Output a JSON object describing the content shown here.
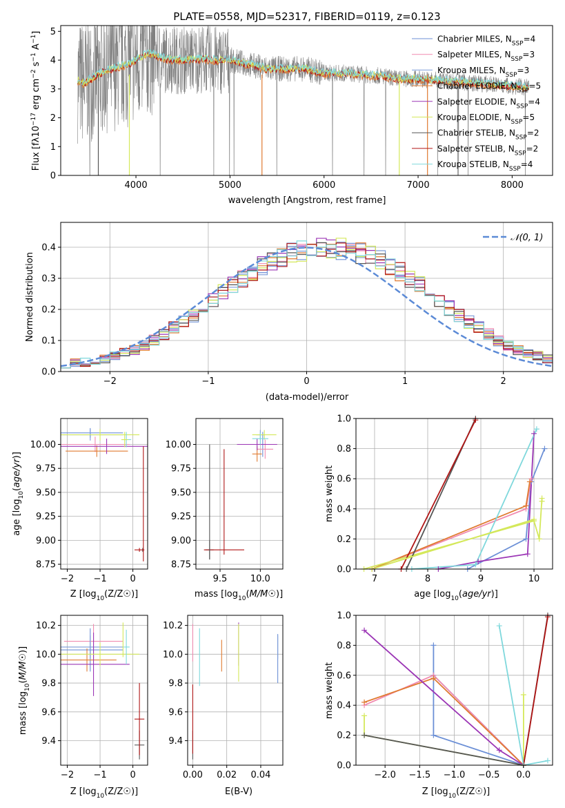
{
  "title": "PLATE=0558, MJD=52317, FIBERID=0119, z=0.123",
  "colors": {
    "chabrier_miles": "#6b8fd6",
    "salpeter_miles": "#f08ab0",
    "kroupa_miles": "#7b9bd8",
    "chabrier_elodie": "#e07a30",
    "salpeter_elodie": "#9b35b5",
    "kroupa_elodie": "#d4e85a",
    "chabrier_stelib": "#555555",
    "salpeter_stelib": "#b01515",
    "kroupa_stelib": "#7fd8dc",
    "spectrum_data": "#808080",
    "gaussian": "#5b8ad6"
  },
  "chart_data": [
    {
      "id": "spectrum",
      "type": "line",
      "title": "PLATE=0558, MJD=52317, FIBERID=0119, z=0.123",
      "xlabel": "wavelength [Angstrom, rest frame]",
      "ylabel": "Flux [f_λ 10^-17 erg cm^-2 s^-1 A^-1]",
      "xlim": [
        3200,
        8430
      ],
      "ylim": [
        0,
        5.2
      ],
      "xticks": [
        4000,
        5000,
        6000,
        7000,
        8000
      ],
      "yticks": [
        0,
        1,
        2,
        3,
        4,
        5
      ],
      "grid": false,
      "legend": "top-right",
      "legend_entries": [
        "Chabrier MILES, N_SSP=4",
        "Salpeter MILES, N_SSP=3",
        "Kroupa MILES, N_SSP=3",
        "Chabrier ELODIE, N_SSP=5",
        "Salpeter ELODIE, N_SSP=4",
        "Kroupa ELODIE, N_SSP=5",
        "Chabrier STELIB, N_SSP=2",
        "Salpeter STELIB, N_SSP=2",
        "Kroupa STELIB, N_SSP=4"
      ],
      "data_range": [
        3380,
        8180
      ],
      "model_curve": {
        "x": [
          3380,
          3450,
          3550,
          3650,
          3750,
          3850,
          3950,
          4050,
          4150,
          4300,
          4500,
          4700,
          4850,
          5000,
          5200,
          5400,
          5600,
          5800,
          6000,
          6200,
          6400,
          6600,
          6800,
          7000,
          7200,
          7400,
          7600,
          7800,
          8000,
          8180
        ],
        "y": [
          3.3,
          3.2,
          3.4,
          3.6,
          3.7,
          3.8,
          3.9,
          4.1,
          4.25,
          4.05,
          4.0,
          4.05,
          4.0,
          4.0,
          3.85,
          3.7,
          3.7,
          3.7,
          3.55,
          3.55,
          3.5,
          3.45,
          3.35,
          3.35,
          3.3,
          3.25,
          3.2,
          3.15,
          3.1,
          3.05
        ]
      }
    },
    {
      "id": "residuals",
      "type": "line",
      "xlabel": "(data-model)/error",
      "ylabel": "Normed distribution",
      "xlim": [
        -2.5,
        2.5
      ],
      "ylim": [
        0,
        0.48
      ],
      "xticks": [
        -2,
        -1,
        0,
        1,
        2
      ],
      "yticks": [
        0.0,
        0.1,
        0.2,
        0.3,
        0.4
      ],
      "grid": true,
      "legend": "top-right",
      "legend_entries": [
        "N(0,1)"
      ],
      "bin_width": 0.1,
      "bin_start": -2.5,
      "hist_base": [
        0.025,
        0.03,
        0.03,
        0.035,
        0.04,
        0.05,
        0.06,
        0.07,
        0.085,
        0.1,
        0.12,
        0.14,
        0.16,
        0.18,
        0.205,
        0.23,
        0.255,
        0.28,
        0.3,
        0.32,
        0.34,
        0.36,
        0.37,
        0.38,
        0.39,
        0.395,
        0.4,
        0.4,
        0.395,
        0.39,
        0.38,
        0.37,
        0.36,
        0.34,
        0.32,
        0.3,
        0.28,
        0.255,
        0.23,
        0.205,
        0.18,
        0.16,
        0.14,
        0.12,
        0.1,
        0.085,
        0.07,
        0.06,
        0.05,
        0.04
      ]
    },
    {
      "id": "age_vs_Z",
      "type": "scatter",
      "xlabel": "Z [log10(Z/Z☉)]",
      "ylabel": "age [log10(age/yr)]",
      "xlim": [
        -2.2,
        0.45
      ],
      "ylim": [
        8.7,
        10.27
      ],
      "xticks": [
        -2,
        -1,
        0
      ],
      "yticks": [
        8.75,
        9.0,
        9.25,
        9.5,
        9.75,
        10.0
      ],
      "grid": true,
      "points": [
        {
          "model": "chabrier_miles",
          "x": -1.3,
          "y": 10.12,
          "xe": 1.0,
          "ye": 0.05
        },
        {
          "model": "salpeter_miles",
          "x": -1.15,
          "y": 10.0,
          "xe": 1.05,
          "ye": 0.08
        },
        {
          "model": "kroupa_miles",
          "x": -1.3,
          "y": 10.1,
          "xe": 1.0,
          "ye": 0.06
        },
        {
          "model": "chabrier_elodie",
          "x": -1.1,
          "y": 9.93,
          "xe": 0.95,
          "ye": 0.06
        },
        {
          "model": "salpeter_elodie",
          "x": -0.8,
          "y": 9.98,
          "xe": 1.45,
          "ye": 0.08
        },
        {
          "model": "kroupa_elodie",
          "x": -1.0,
          "y": 10.1,
          "xe": 1.2,
          "ye": 0.06
        },
        {
          "model": "chabrier_stelib",
          "x": 0.3,
          "y": 8.9,
          "xe": 0.02,
          "ye": 0.02
        },
        {
          "model": "salpeter_stelib",
          "x": 0.2,
          "y": 8.9,
          "xe": 0.15,
          "ye": 0.02
        },
        {
          "model": "kroupa_stelib",
          "x": -0.2,
          "y": 10.05,
          "xe": 0.15,
          "ye": 0.08
        },
        {
          "model": "kroupa_elodie",
          "x": -0.25,
          "y": 10.05,
          "xe": 0.1,
          "ye": 0.08
        },
        {
          "model": "salpeter_stelib",
          "x": 0.32,
          "y": 9.38,
          "xe": 0.0,
          "ye": 0.6
        }
      ]
    },
    {
      "id": "age_vs_mass",
      "type": "scatter",
      "xlabel": "mass [log10(M/M☉)]",
      "ylabel": "",
      "xlim": [
        9.2,
        10.28
      ],
      "ylim": [
        8.7,
        10.27
      ],
      "xticks": [
        9.5,
        10.0
      ],
      "yticks": [
        8.75,
        9.0,
        9.25,
        9.5,
        9.75,
        10.0
      ],
      "grid": true,
      "points": [
        {
          "model": "chabrier_miles",
          "x": 10.03,
          "y": 10.0,
          "xe": 0.05,
          "ye": 0.13
        },
        {
          "model": "salpeter_miles",
          "x": 10.06,
          "y": 9.95,
          "xe": 0.1,
          "ye": 0.1
        },
        {
          "model": "kroupa_miles",
          "x": 10.0,
          "y": 10.1,
          "xe": 0.05,
          "ye": 0.05
        },
        {
          "model": "chabrier_elodie",
          "x": 9.96,
          "y": 9.9,
          "xe": 0.06,
          "ye": 0.08
        },
        {
          "model": "salpeter_elodie",
          "x": 9.96,
          "y": 10.0,
          "xe": 0.25,
          "ye": 0.06
        },
        {
          "model": "kroupa_elodie",
          "x": 10.05,
          "y": 10.1,
          "xe": 0.15,
          "ye": 0.05
        },
        {
          "model": "chabrier_stelib",
          "x": 9.37,
          "y": 8.9,
          "xe": 0.05,
          "ye": 0.1
        },
        {
          "model": "salpeter_stelib",
          "x": 9.55,
          "y": 8.9,
          "xe": 0.25,
          "ye": 0.0
        },
        {
          "model": "kroupa_stelib",
          "x": 10.0,
          "y": 10.06,
          "xe": 0.1,
          "ye": 0.06
        },
        {
          "model": "chabrier_stelib",
          "x": 9.37,
          "y": 9.4,
          "xe": 0.0,
          "ye": 0.6
        },
        {
          "model": "salpeter_stelib",
          "x": 9.55,
          "y": 9.4,
          "xe": 0.0,
          "ye": 0.55
        }
      ]
    },
    {
      "id": "weight_vs_age",
      "type": "line",
      "xlabel": "age [log10(age/yr)]",
      "ylabel": "mass weight",
      "xlim": [
        6.65,
        10.35
      ],
      "ylim": [
        0,
        1.0
      ],
      "xticks": [
        7,
        8,
        9,
        10
      ],
      "yticks": [
        0.0,
        0.2,
        0.4,
        0.6,
        0.8,
        1.0
      ],
      "grid": true,
      "series": [
        {
          "model": "chabrier_miles",
          "x": [
            8.75,
            9.85,
            9.95,
            10.2
          ],
          "y": [
            0.0,
            0.2,
            0.58,
            0.8
          ]
        },
        {
          "model": "salpeter_miles",
          "x": [
            6.95,
            9.85,
            9.95
          ],
          "y": [
            0.0,
            0.4,
            0.6
          ]
        },
        {
          "model": "chabrier_elodie",
          "x": [
            6.95,
            9.85,
            9.92
          ],
          "y": [
            0.0,
            0.42,
            0.58
          ]
        },
        {
          "model": "salpeter_elodie",
          "x": [
            8.2,
            8.95,
            9.88,
            10.0
          ],
          "y": [
            0.0,
            0.05,
            0.1,
            0.9
          ]
        },
        {
          "model": "kroupa_elodie",
          "x": [
            6.8,
            10.0,
            10.1,
            10.15,
            10.15
          ],
          "y": [
            0.0,
            0.32,
            0.2,
            0.47,
            0.45
          ]
        },
        {
          "model": "chabrier_stelib",
          "x": [
            7.6,
            8.9
          ],
          "y": [
            0.0,
            1.0
          ]
        },
        {
          "model": "salpeter_stelib",
          "x": [
            7.5,
            8.9
          ],
          "y": [
            0.0,
            0.99
          ]
        },
        {
          "model": "kroupa_stelib",
          "x": [
            7.7,
            8.9,
            10.05
          ],
          "y": [
            0.0,
            0.03,
            0.93
          ]
        },
        {
          "model": "kroupa_elodie",
          "x": [
            6.95,
            10.0
          ],
          "y": [
            0.0,
            0.33
          ]
        }
      ]
    },
    {
      "id": "mass_vs_Z",
      "type": "scatter",
      "xlabel": "Z [log10(Z/Z☉)]",
      "ylabel": "mass [log10(M/M☉)]",
      "xlim": [
        -2.2,
        0.45
      ],
      "ylim": [
        9.23,
        10.27
      ],
      "xticks": [
        -2,
        -1,
        0
      ],
      "yticks": [
        9.4,
        9.6,
        9.8,
        10.0,
        10.2
      ],
      "grid": true,
      "points": [
        {
          "model": "chabrier_miles",
          "x": -1.3,
          "y": 10.03,
          "xe": 1.0,
          "ye": 0.15
        },
        {
          "model": "salpeter_miles",
          "x": -1.2,
          "y": 10.09,
          "xe": 0.9,
          "ye": 0.12
        },
        {
          "model": "kroupa_miles",
          "x": -1.3,
          "y": 10.05,
          "xe": 1.0,
          "ye": 0.08
        },
        {
          "model": "chabrier_elodie",
          "x": -1.4,
          "y": 9.96,
          "xe": 0.9,
          "ye": 0.08
        },
        {
          "model": "salpeter_elodie",
          "x": -1.2,
          "y": 9.93,
          "xe": 1.1,
          "ye": 0.22
        },
        {
          "model": "kroupa_elodie",
          "x": -1.0,
          "y": 10.0,
          "xe": 1.2,
          "ye": 0.08
        },
        {
          "model": "chabrier_stelib",
          "x": 0.2,
          "y": 9.37,
          "xe": 0.15,
          "ye": 0.1
        },
        {
          "model": "salpeter_stelib",
          "x": 0.2,
          "y": 9.55,
          "xe": 0.15,
          "ye": 0.25
        },
        {
          "model": "kroupa_stelib",
          "x": -0.2,
          "y": 10.05,
          "xe": 0.1,
          "ye": 0.12
        },
        {
          "model": "kroupa_elodie",
          "x": -0.3,
          "y": 10.1,
          "xe": 0.0,
          "ye": 0.12
        }
      ]
    },
    {
      "id": "mass_vs_ebv",
      "type": "scatter",
      "xlabel": "E(B-V)",
      "ylabel": "",
      "xlim": [
        -0.003,
        0.053
      ],
      "ylim": [
        9.23,
        10.27
      ],
      "xticks": [
        0.0,
        0.02,
        0.04
      ],
      "yticks": [
        9.4,
        9.6,
        9.8,
        10.0,
        10.2
      ],
      "grid": true,
      "points": [
        {
          "model": "chabrier_miles",
          "x": 0.05,
          "y": 9.97,
          "xe": 0.0,
          "ye": 0.17
        },
        {
          "model": "salpeter_miles",
          "x": 0.0,
          "y": 10.08,
          "xe": 0.0,
          "ye": 0.13
        },
        {
          "model": "kroupa_miles",
          "x": 0.05,
          "y": 10.05,
          "xe": 0.0,
          "ye": 0.08
        },
        {
          "model": "chabrier_elodie",
          "x": 0.017,
          "y": 9.99,
          "xe": 0.0,
          "ye": 0.11
        },
        {
          "model": "salpeter_elodie",
          "x": 0.027,
          "y": 10.07,
          "xe": 0.0,
          "ye": 0.15
        },
        {
          "model": "kroupa_elodie",
          "x": 0.027,
          "y": 10.01,
          "xe": 0.0,
          "ye": 0.2
        },
        {
          "model": "chabrier_stelib",
          "x": 0.0,
          "y": 9.37,
          "xe": 0.0,
          "ye": 0.1
        },
        {
          "model": "salpeter_stelib",
          "x": 0.0,
          "y": 9.55,
          "xe": 0.0,
          "ye": 0.24
        },
        {
          "model": "kroupa_stelib",
          "x": 0.004,
          "y": 9.98,
          "xe": 0.0,
          "ye": 0.2
        }
      ]
    },
    {
      "id": "weight_vs_Z",
      "type": "line",
      "xlabel": "Z [log10(Z/Z☉)]",
      "ylabel": "mass weight",
      "xlim": [
        -2.42,
        0.42
      ],
      "ylim": [
        0,
        1.0
      ],
      "xticks": [
        -2.0,
        -1.5,
        -1.0,
        -0.5,
        0.0
      ],
      "yticks": [
        0.0,
        0.2,
        0.4,
        0.6,
        0.8,
        1.0
      ],
      "grid": true,
      "series": [
        {
          "model": "chabrier_miles",
          "x": [
            -1.3,
            -1.3,
            0.0,
            -1.3
          ],
          "y": [
            0.8,
            0.2,
            0.0,
            0.6
          ]
        },
        {
          "model": "salpeter_miles",
          "x": [
            -2.3,
            -1.3,
            0.0
          ],
          "y": [
            0.4,
            0.6,
            0.0
          ]
        },
        {
          "model": "chabrier_elodie",
          "x": [
            -2.3,
            -1.3,
            0.0
          ],
          "y": [
            0.42,
            0.58,
            0.0
          ]
        },
        {
          "model": "salpeter_elodie",
          "x": [
            -2.3,
            -0.35,
            0.0
          ],
          "y": [
            0.9,
            0.1,
            0.0
          ]
        },
        {
          "model": "kroupa_elodie",
          "x": [
            -2.3,
            -2.3,
            0.0,
            0.0,
            0.0
          ],
          "y": [
            0.33,
            0.2,
            0.0,
            0.47,
            0.0
          ]
        },
        {
          "model": "chabrier_stelib",
          "x": [
            -2.3,
            0.0,
            0.35
          ],
          "y": [
            0.2,
            0.0,
            1.0
          ]
        },
        {
          "model": "salpeter_stelib",
          "x": [
            0.0,
            0.35
          ],
          "y": [
            0.0,
            0.99
          ]
        },
        {
          "model": "kroupa_stelib",
          "x": [
            -0.35,
            0.0,
            0.35
          ],
          "y": [
            0.93,
            0.0,
            0.03
          ]
        }
      ]
    }
  ],
  "text": {
    "spec_xlabel": "wavelength [Angstrom, rest frame]",
    "resid_xlabel": "(data-model)/error",
    "resid_ylabel": "Normed distribution",
    "mw_ylabel": "mass weight",
    "ebv_xlabel": "E(B-V)",
    "legend_gauss": "𝒩(0, 1)"
  }
}
